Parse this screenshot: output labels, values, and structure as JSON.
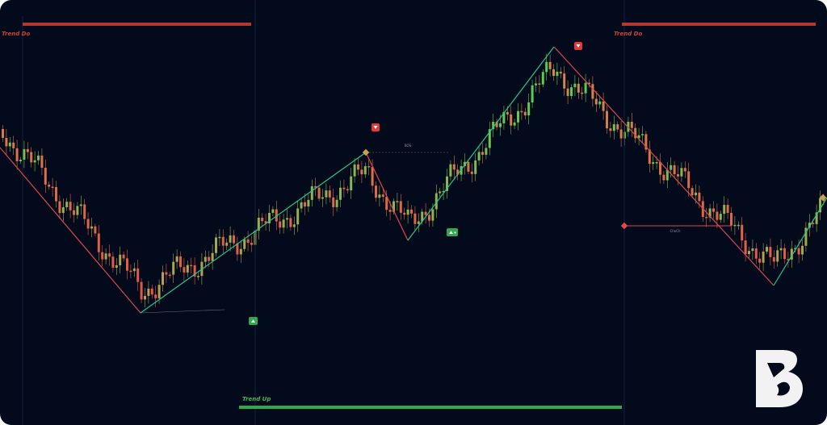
{
  "labels": {
    "trend_down_left": "Trend Do",
    "trend_down_right": "Trend Do",
    "trend_up": "Trend Up",
    "bos": "BOS",
    "choch": "ChoCh"
  }
}
